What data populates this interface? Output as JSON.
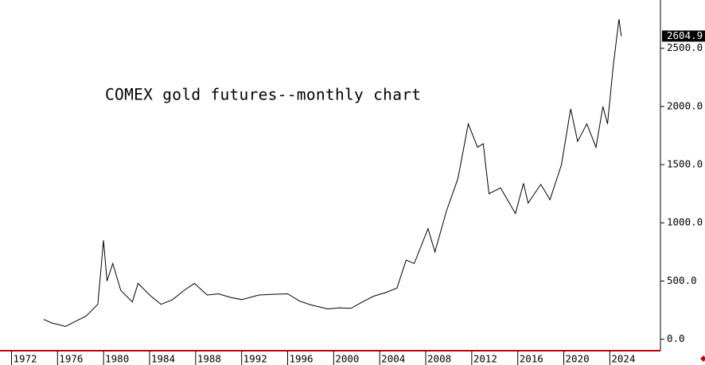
{
  "chart_data": {
    "type": "line",
    "title": "COMEX gold futures--monthly chart",
    "x": [
      1974.8,
      1975.5,
      1976.7,
      1977.5,
      1978.5,
      1979.5,
      1980.0,
      1980.3,
      1980.8,
      1981.5,
      1982.5,
      1983.0,
      1984.0,
      1985.0,
      1986.0,
      1987.0,
      1987.9,
      1989.0,
      1990.0,
      1991.0,
      1992.0,
      1993.5,
      1994.5,
      1996.0,
      1997.0,
      1998.0,
      1999.5,
      2000.5,
      2001.5,
      2002.5,
      2003.5,
      2004.5,
      2005.5,
      2006.3,
      2007.0,
      2008.2,
      2008.8,
      2009.8,
      2010.8,
      2011.7,
      2012.5,
      2013.0,
      2013.5,
      2014.5,
      2015.8,
      2016.5,
      2016.9,
      2018.0,
      2018.8,
      2019.8,
      2020.6,
      2021.2,
      2022.0,
      2022.8,
      2023.4,
      2023.8,
      2024.3,
      2024.8,
      2025.0
    ],
    "series": [
      {
        "name": "Gold",
        "color": "#000000",
        "values": [
          170,
          140,
          110,
          150,
          200,
          300,
          850,
          500,
          650,
          420,
          320,
          480,
          380,
          300,
          340,
          420,
          480,
          380,
          390,
          360,
          340,
          380,
          385,
          390,
          330,
          295,
          260,
          270,
          265,
          320,
          370,
          400,
          440,
          680,
          650,
          950,
          750,
          1100,
          1380,
          1850,
          1650,
          1680,
          1250,
          1300,
          1080,
          1340,
          1170,
          1330,
          1200,
          1500,
          1980,
          1700,
          1850,
          1650,
          2000,
          1850,
          2350,
          2750,
          2604.9
        ]
      }
    ],
    "last_value": 2604.9,
    "xlim": [
      1971,
      2028.4
    ],
    "xticks": [
      1972,
      1976,
      1980,
      1984,
      1988,
      1992,
      1996,
      2000,
      2004,
      2008,
      2012,
      2016,
      2020,
      2024
    ],
    "ylim": [
      -85,
      2915
    ],
    "yticks": [
      {
        "value": 0,
        "label": "0.0"
      },
      {
        "value": 500,
        "label": "500.0"
      },
      {
        "value": 1000,
        "label": "1000.0"
      },
      {
        "value": 1500,
        "label": "1500.0"
      },
      {
        "value": 2000,
        "label": "2000.0"
      },
      {
        "value": 2500,
        "label": "2500.0"
      }
    ]
  }
}
